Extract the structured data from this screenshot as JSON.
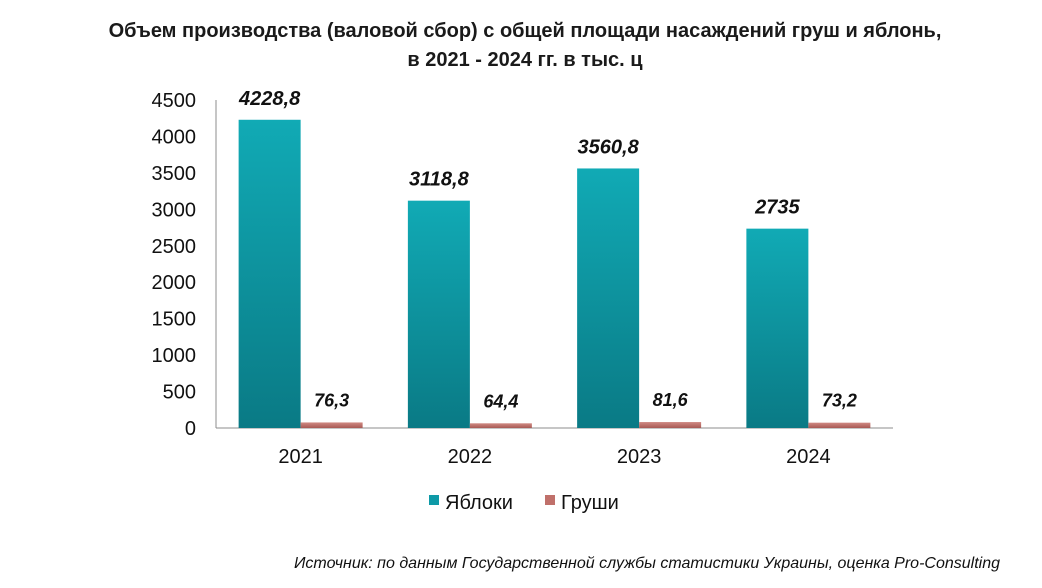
{
  "chart_data": {
    "type": "bar",
    "title_line1": "Объем производства (валовой сбор) с общей площади насаждений груш и яблонь,",
    "title_line2": "в 2021 - 2024 гг. в тыс. ц",
    "categories": [
      "2021",
      "2022",
      "2023",
      "2024"
    ],
    "series": [
      {
        "name": "Яблоки",
        "values": [
          4228.8,
          3118.8,
          3560.8,
          2735
        ],
        "labels": [
          "4228,8",
          "3118,8",
          "3560,8",
          "2735"
        ],
        "color": "#0e9aa7"
      },
      {
        "name": "Груши",
        "values": [
          76.3,
          64.4,
          81.6,
          73.2
        ],
        "labels": [
          "76,3",
          "64,4",
          "81,6",
          "73,2"
        ],
        "color": "#c0706a"
      }
    ],
    "yticks": [
      "0",
      "500",
      "1000",
      "1500",
      "2000",
      "2500",
      "3000",
      "3500",
      "4000",
      "4500"
    ],
    "ylim": [
      0,
      4500
    ],
    "xlabel": "",
    "ylabel": "",
    "legend_position": "bottom",
    "source": "Источник: по данным Государственной службы статистики Украины, оценка Pro-Consulting"
  }
}
